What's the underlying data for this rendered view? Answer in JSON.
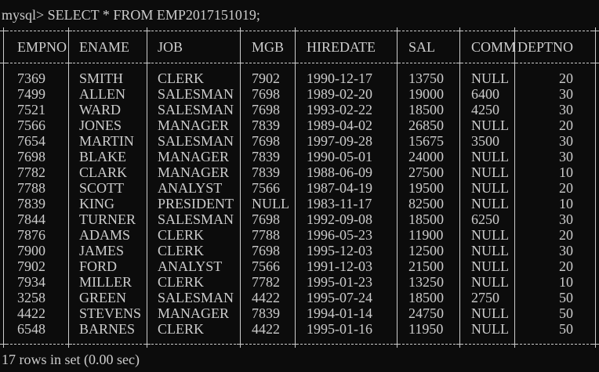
{
  "terminal": {
    "prompt": "mysql> SELECT * FROM EMP2017151019;",
    "status": "17 rows in set (0.00 sec)"
  },
  "table": {
    "headers": [
      "EMPNO",
      "ENAME",
      "JOB",
      "MGB",
      "HIREDATE",
      "SAL",
      "COMM",
      "DEPTNO"
    ],
    "rows": [
      [
        "7369",
        "SMITH",
        "CLERK",
        "7902",
        "1990-12-17",
        "13750",
        "NULL",
        "20"
      ],
      [
        "7499",
        "ALLEN",
        "SALESMAN",
        "7698",
        "1989-02-20",
        "19000",
        "6400",
        "30"
      ],
      [
        "7521",
        "WARD",
        "SALESMAN",
        "7698",
        "1993-02-22",
        "18500",
        "4250",
        "30"
      ],
      [
        "7566",
        "JONES",
        "MANAGER",
        "7839",
        "1989-04-02",
        "26850",
        "NULL",
        "20"
      ],
      [
        "7654",
        "MARTIN",
        "SALESMAN",
        "7698",
        "1997-09-28",
        "15675",
        "3500",
        "30"
      ],
      [
        "7698",
        "BLAKE",
        "MANAGER",
        "7839",
        "1990-05-01",
        "24000",
        "NULL",
        "30"
      ],
      [
        "7782",
        "CLARK",
        "MANAGER",
        "7839",
        "1988-06-09",
        "27500",
        "NULL",
        "10"
      ],
      [
        "7788",
        "SCOTT",
        "ANALYST",
        "7566",
        "1987-04-19",
        "19500",
        "NULL",
        "20"
      ],
      [
        "7839",
        "KING",
        "PRESIDENT",
        "NULL",
        "1983-11-17",
        "82500",
        "NULL",
        "10"
      ],
      [
        "7844",
        "TURNER",
        "SALESMAN",
        "7698",
        "1992-09-08",
        "18500",
        "6250",
        "30"
      ],
      [
        "7876",
        "ADAMS",
        "CLERK",
        "7788",
        "1996-05-23",
        "11900",
        "NULL",
        "20"
      ],
      [
        "7900",
        "JAMES",
        "CLERK",
        "7698",
        "1995-12-03",
        "12500",
        "NULL",
        "30"
      ],
      [
        "7902",
        "FORD",
        "ANALYST",
        "7566",
        "1991-12-03",
        "21500",
        "NULL",
        "20"
      ],
      [
        "7934",
        "MILLER",
        "CLERK",
        "7782",
        "1995-01-23",
        "13250",
        "NULL",
        "10"
      ],
      [
        "3258",
        "GREEN",
        "SALESMAN",
        "4422",
        "1995-07-24",
        "18500",
        "2750",
        "50"
      ],
      [
        "4422",
        "STEVENS",
        "MANAGER",
        "7839",
        "1994-01-14",
        "24750",
        "NULL",
        "50"
      ],
      [
        "6548",
        "BARNES",
        "CLERK",
        "4422",
        "1995-01-16",
        "11950",
        "NULL",
        "50"
      ]
    ]
  }
}
